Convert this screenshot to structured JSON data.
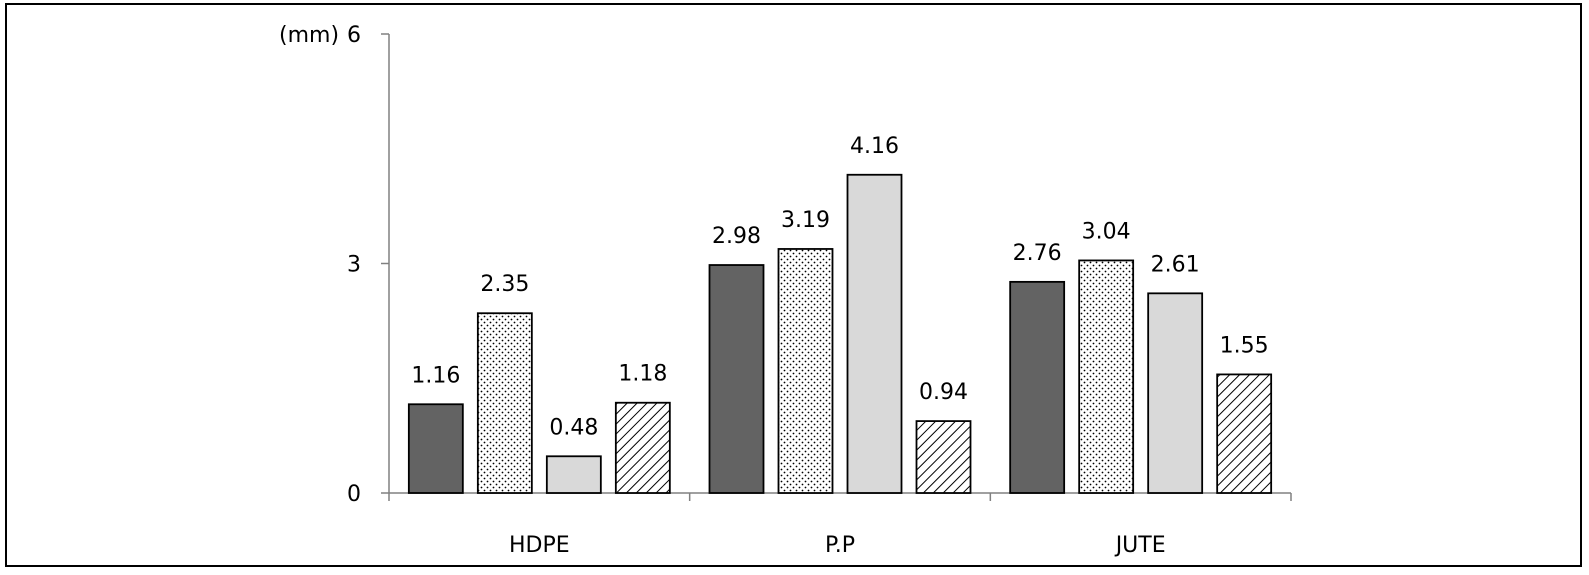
{
  "chart_data": {
    "type": "bar",
    "categories": [
      "HDPE",
      "P.P",
      "JUTE"
    ],
    "series": [
      {
        "fill": "solid-dark",
        "color": "#636363",
        "values": [
          1.16,
          2.98,
          2.76
        ]
      },
      {
        "fill": "dotted",
        "color": "#ffffff",
        "values": [
          2.35,
          3.19,
          3.04
        ]
      },
      {
        "fill": "solid-light",
        "color": "#d9d9d9",
        "values": [
          0.48,
          4.16,
          2.61
        ]
      },
      {
        "fill": "hatched",
        "color": "#ffffff",
        "values": [
          1.18,
          0.94,
          1.55
        ]
      }
    ],
    "unit": "(mm)",
    "y_ticks": [
      "0",
      "3",
      "6"
    ],
    "ylim": [
      0,
      6
    ],
    "grid": false,
    "legend": "none",
    "value_labels": true
  }
}
